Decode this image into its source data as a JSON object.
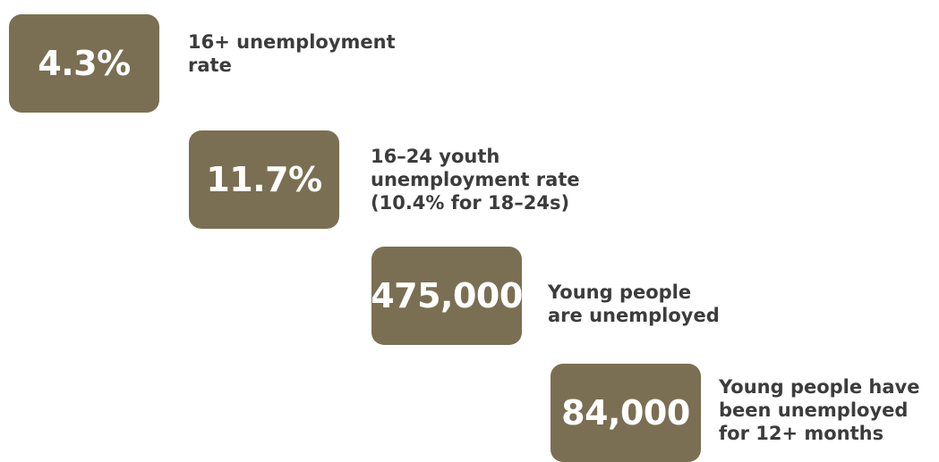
{
  "stats": [
    {
      "value": "4.3%",
      "description": "16+ unemployment\nrate"
    },
    {
      "value": "11.7%",
      "description": "16–24 youth\nunemployment rate\n(10.4% for 18–24s)"
    },
    {
      "value": "475,000",
      "description": "Young people\nare unemployed"
    },
    {
      "value": "84,000",
      "description": "Young people have\nbeen unemployed\nfor 12+ months"
    }
  ],
  "colors": {
    "box_background": "#7a6f52",
    "box_text": "#ffffff",
    "description_text": "#3c3c3c"
  }
}
